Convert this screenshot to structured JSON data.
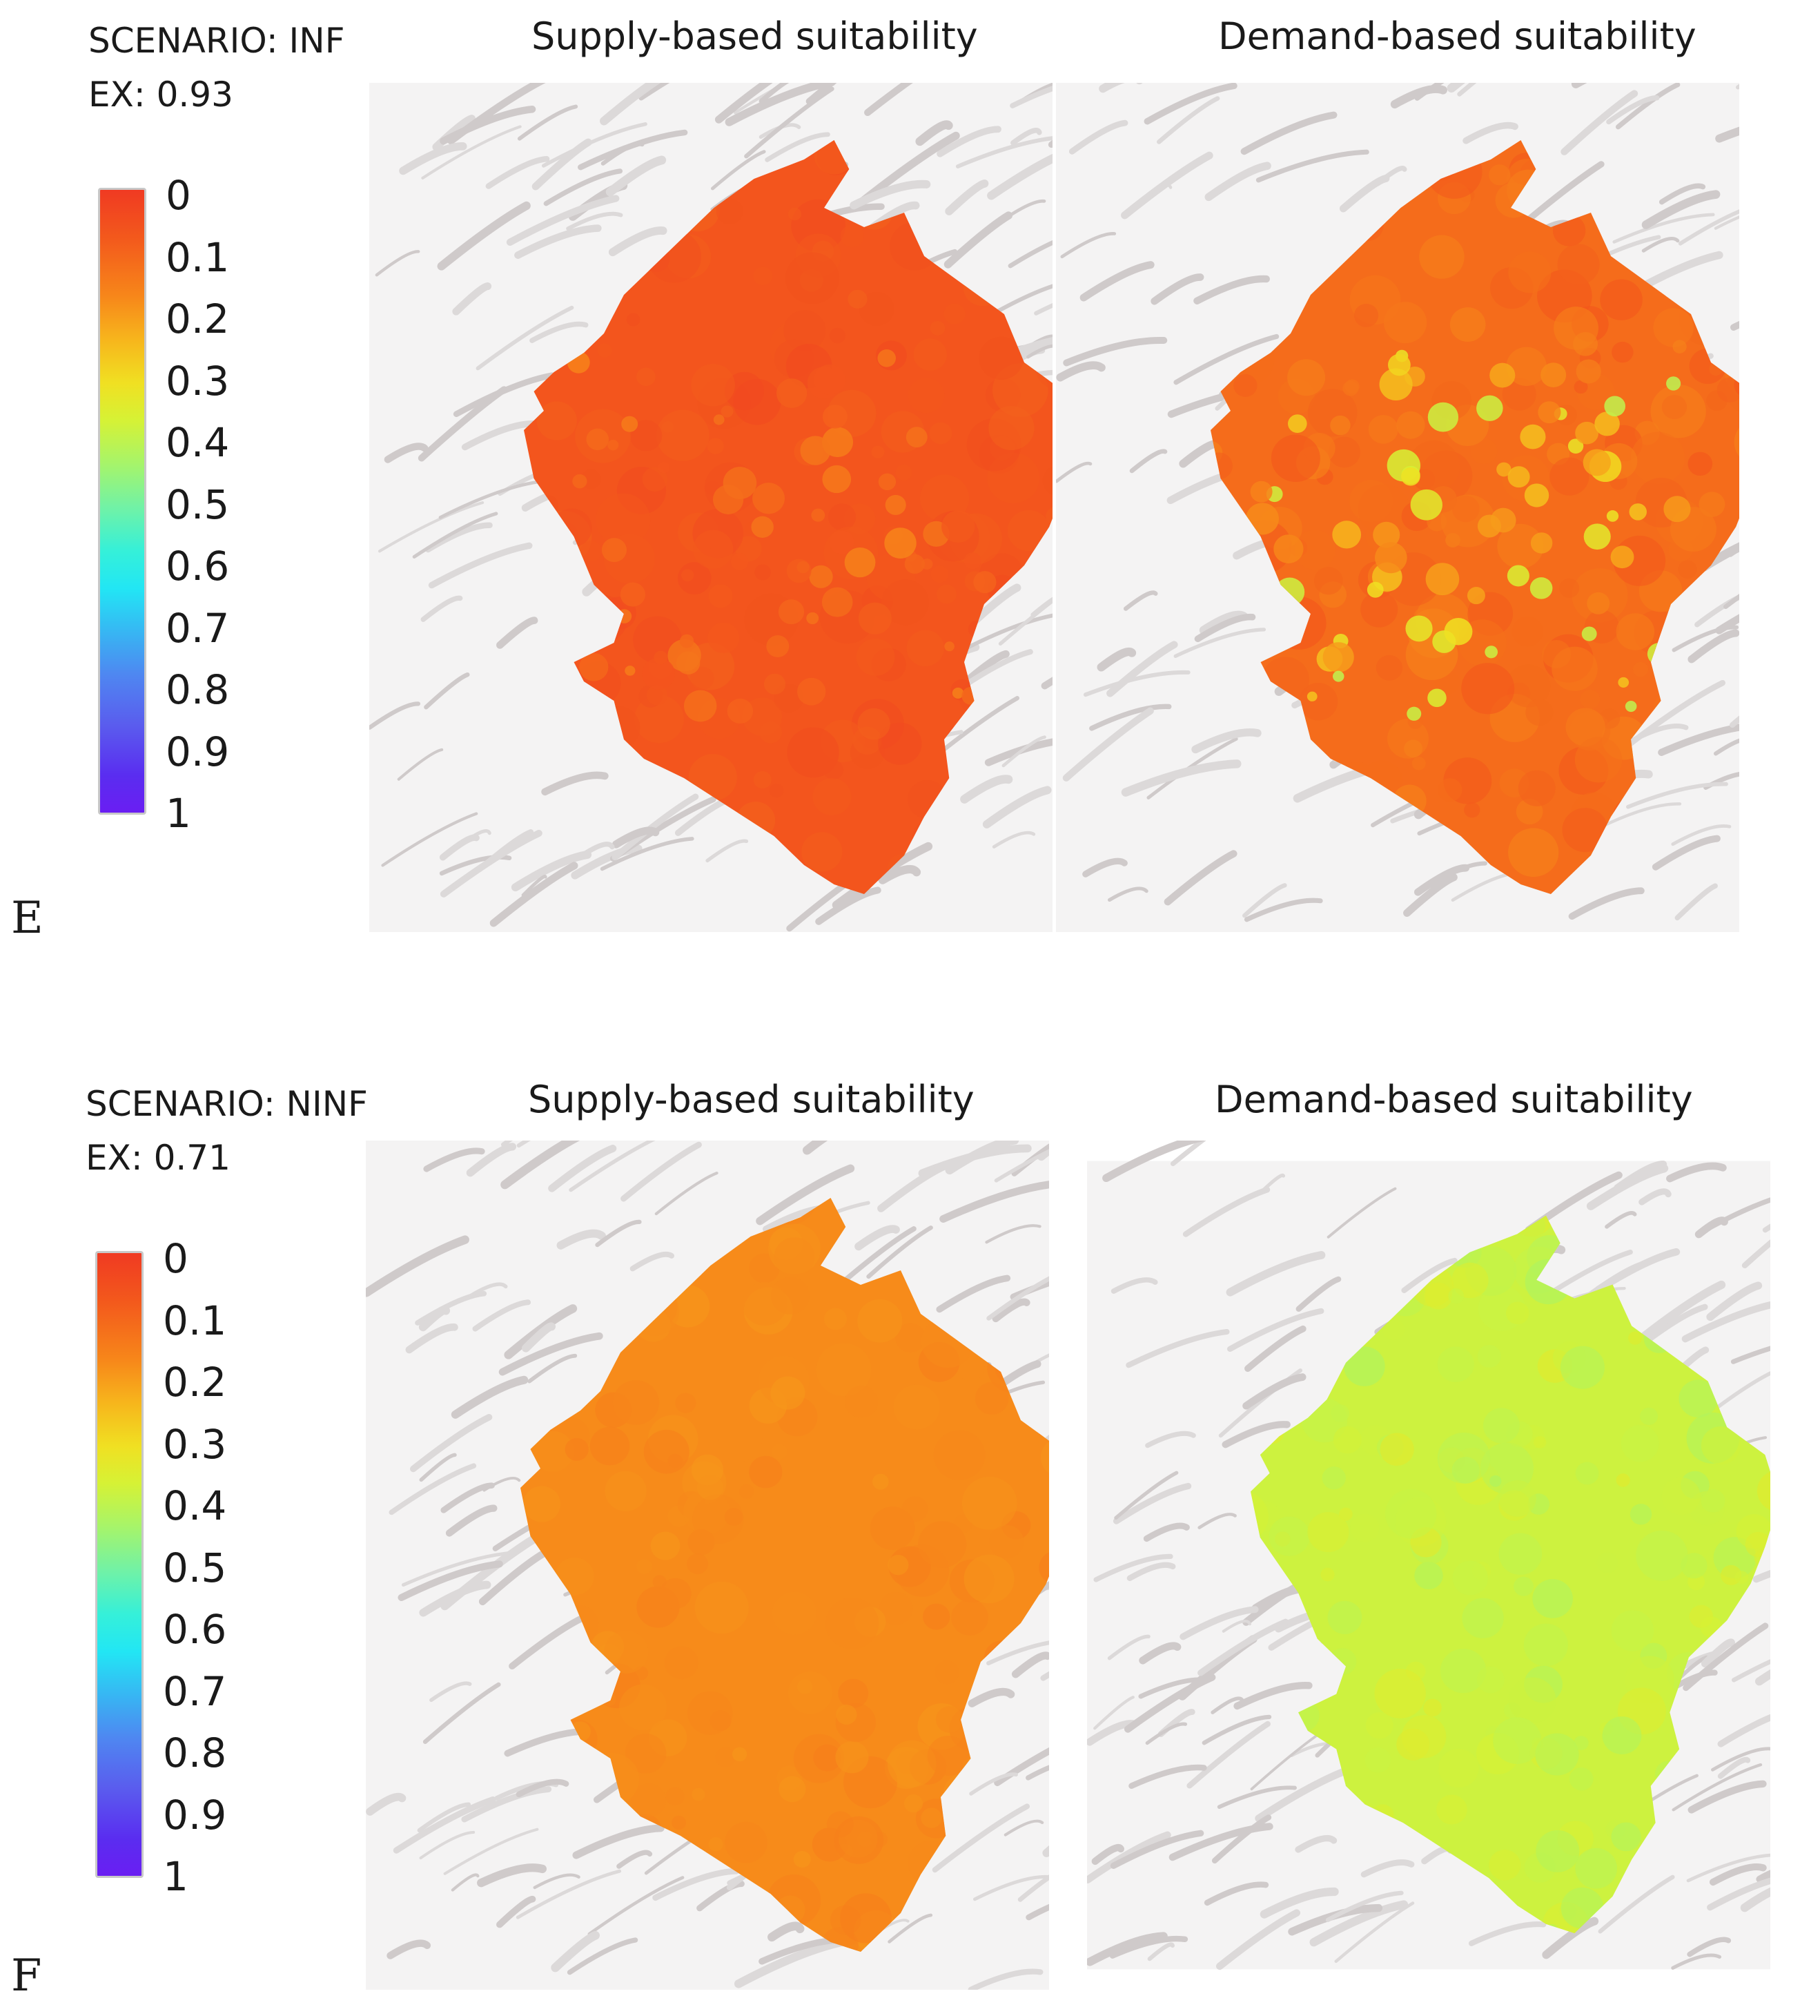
{
  "panels": [
    {
      "letter": "E",
      "scenario": "SCENARIO: INF",
      "ex": "EX: 0.93",
      "maps": [
        {
          "title": "Supply-based suitability",
          "suitability": 0.06,
          "variation": 0.05,
          "hotspots": 0.08
        },
        {
          "title": "Demand-based suitability",
          "suitability": 0.1,
          "variation": 0.08,
          "hotspots": 0.3
        }
      ]
    },
    {
      "letter": "F",
      "scenario": "SCENARIO: NINF",
      "ex": "EX: 0.71",
      "maps": [
        {
          "title": "Supply-based suitability",
          "suitability": 0.15,
          "variation": 0.04,
          "hotspots": 0.0
        },
        {
          "title": "Demand-based suitability",
          "suitability": 0.37,
          "variation": 0.1,
          "hotspots": 0.0
        }
      ]
    }
  ],
  "legend": {
    "ticks": [
      "0",
      "0.1",
      "0.2",
      "0.3",
      "0.4",
      "0.5",
      "0.6",
      "0.7",
      "0.8",
      "0.9",
      "1"
    ],
    "colors": [
      "#f03a22",
      "#f35a1c",
      "#f7861a",
      "#f7b51c",
      "#f0e022",
      "#d6f235",
      "#a6f46a",
      "#71f2a6",
      "#35f0d9",
      "#22e6f4",
      "#37b6f3",
      "#4f86f1",
      "#5a5cee",
      "#5a2df0",
      "#6a1ef2"
    ]
  },
  "basemap": {
    "type": "hillshade",
    "color": "#e9e7e7"
  }
}
